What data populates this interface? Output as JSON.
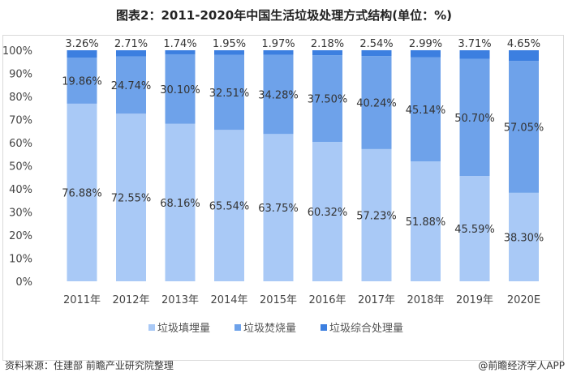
{
  "chart_data": {
    "type": "bar",
    "stacked": true,
    "title": "图表2：2011-2020年中国生活垃圾处理方式结构(单位：%)",
    "categories": [
      "2011年",
      "2012年",
      "2013年",
      "2014年",
      "2015年",
      "2016年",
      "2017年",
      "2018年",
      "2019年",
      "2020E"
    ],
    "series": [
      {
        "name": "垃圾填埋量",
        "color": "#a9c9f6",
        "values": [
          76.88,
          72.55,
          68.16,
          65.54,
          63.75,
          60.32,
          57.23,
          51.88,
          45.59,
          38.3
        ]
      },
      {
        "name": "垃圾焚烧量",
        "color": "#6ea2ea",
        "values": [
          19.86,
          24.74,
          30.1,
          32.51,
          34.28,
          37.5,
          40.24,
          45.14,
          50.7,
          57.05
        ]
      },
      {
        "name": "垃圾综合处理量",
        "color": "#3c7fe0",
        "values": [
          3.26,
          2.71,
          1.74,
          1.95,
          1.97,
          2.18,
          2.54,
          2.99,
          3.71,
          4.65
        ]
      }
    ],
    "yticks": [
      "0%",
      "10%",
      "20%",
      "30%",
      "40%",
      "50%",
      "60%",
      "70%",
      "80%",
      "90%",
      "100%"
    ],
    "ylim": [
      0,
      100
    ],
    "grid": false,
    "legend": "bottom"
  },
  "footer": {
    "source": "资料来源：住建部 前瞻产业研究院整理",
    "brand": "@前瞻经济学人APP"
  }
}
